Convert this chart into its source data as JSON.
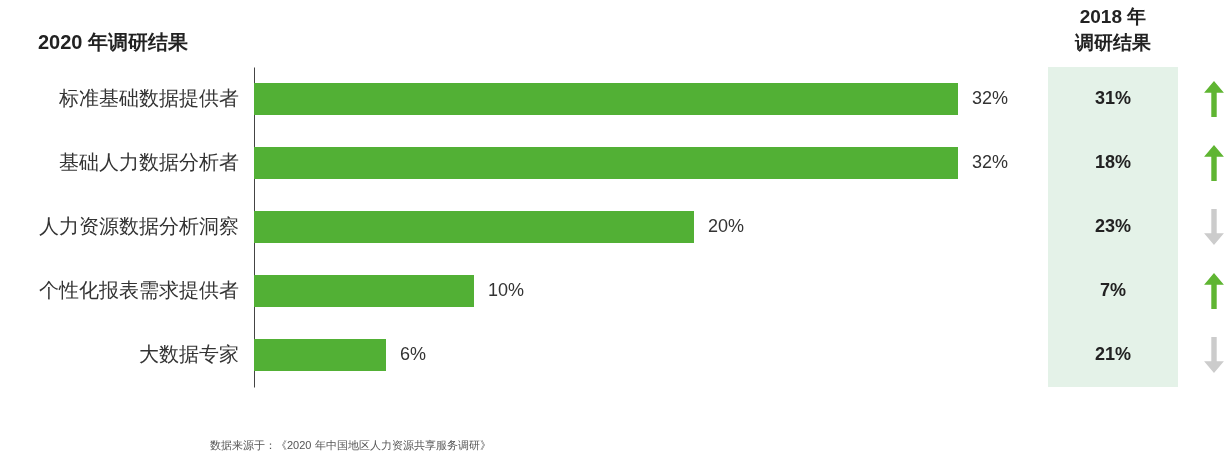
{
  "chart_data": [
    {
      "type": "bar",
      "orientation": "horizontal",
      "title": "2020 年调研结果",
      "categories": [
        "标准基础数据提供者",
        "基础人力数据分析者",
        "人力资源数据分析洞察",
        "个性化报表需求提供者",
        "大数据专家"
      ],
      "values": [
        32,
        32,
        20,
        10,
        6
      ],
      "value_labels": [
        "32%",
        "32%",
        "20%",
        "10%",
        "6%"
      ],
      "color": "#52b035",
      "annotations": [
        "数据来源于：《2020 年中国地区人力资源共享服务调研》"
      ]
    },
    {
      "type": "other",
      "title": "2018 年调研结果",
      "categories": [
        null,
        null,
        null,
        null,
        null
      ],
      "values": [
        31,
        18,
        23,
        7,
        21
      ],
      "value_labels": [
        "31%",
        "18%",
        "23%",
        "7%",
        "21%"
      ]
    }
  ]
}
